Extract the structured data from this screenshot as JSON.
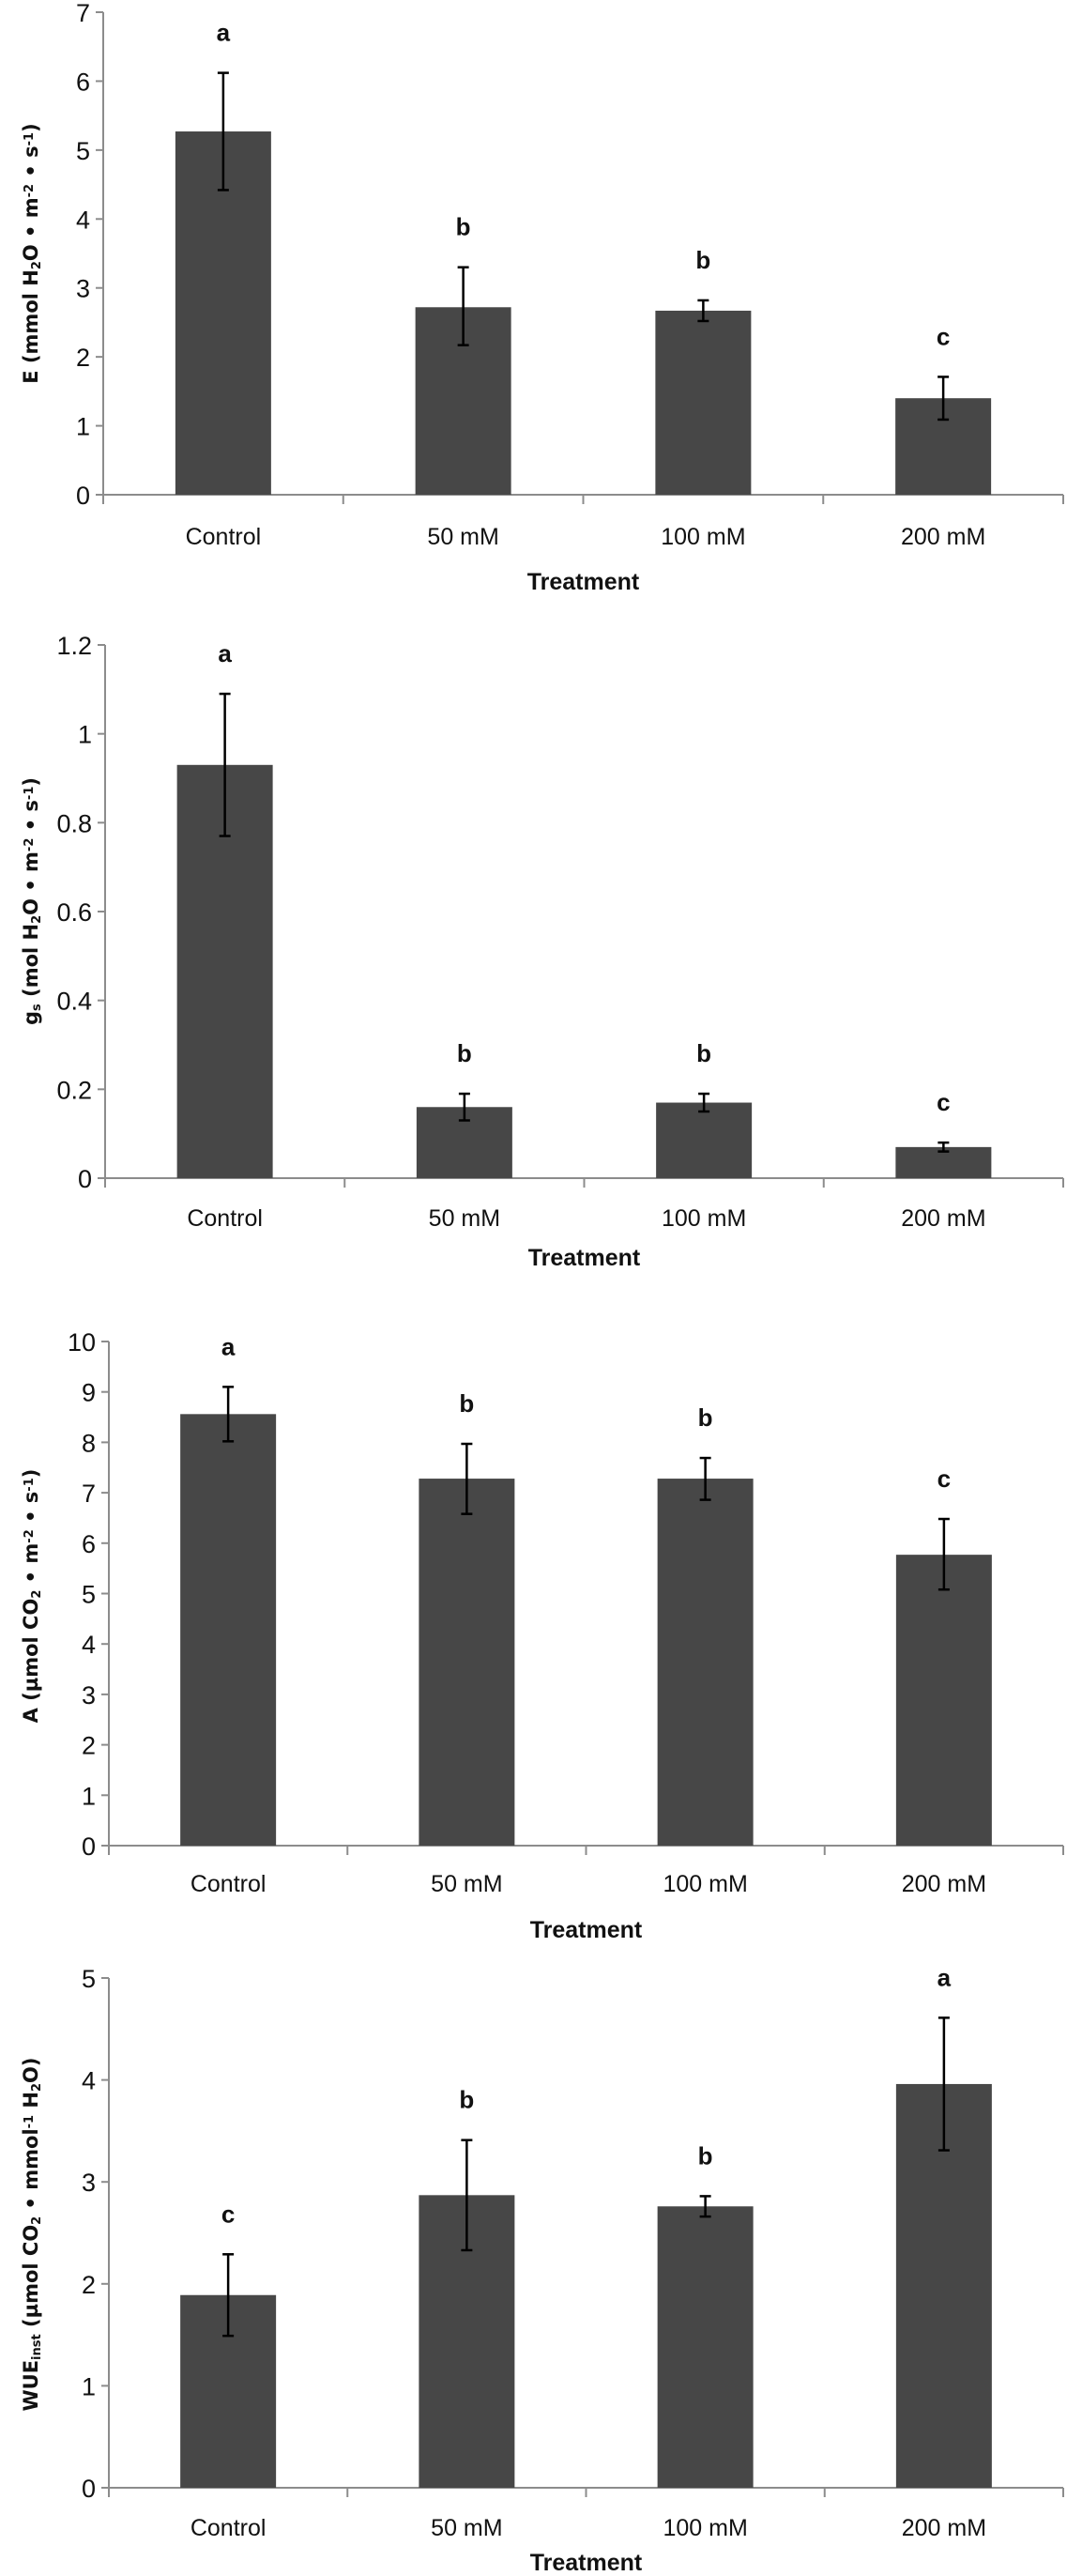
{
  "colors": {
    "bar": "#474747",
    "axis": "#8c8c8c",
    "error_bar": "#000000"
  },
  "chart_data": [
    {
      "type": "bar",
      "categories": [
        "Control",
        "50 mM",
        "100 mM",
        "200 mM"
      ],
      "values": [
        5.27,
        2.72,
        2.67,
        1.4
      ],
      "error_upper": [
        6.12,
        3.3,
        2.82,
        1.71
      ],
      "error_lower": [
        4.42,
        2.17,
        2.52,
        1.09
      ],
      "significance_letters": [
        "a",
        "b",
        "b",
        "c"
      ],
      "xlabel": "Treatment",
      "ylabel_parts": [
        {
          "t": "E (mmol H"
        },
        {
          "t": "2",
          "s": "sub"
        },
        {
          "t": "O • m"
        },
        {
          "t": "-2",
          "s": "sup"
        },
        {
          "t": " • s"
        },
        {
          "t": "-1",
          "s": "sup"
        },
        {
          "t": ")"
        }
      ],
      "ylim": [
        0,
        7
      ],
      "yticks": [
        "0",
        "1",
        "2",
        "3",
        "4",
        "5",
        "6",
        "7"
      ],
      "grid": false
    },
    {
      "type": "bar",
      "categories": [
        "Control",
        "50 mM",
        "100 mM",
        "200 mM"
      ],
      "values": [
        0.93,
        0.16,
        0.17,
        0.07
      ],
      "error_upper": [
        1.09,
        0.19,
        0.19,
        0.08
      ],
      "error_lower": [
        0.77,
        0.13,
        0.15,
        0.06
      ],
      "significance_letters": [
        "a",
        "b",
        "b",
        "c"
      ],
      "xlabel": "Treatment",
      "ylabel_parts": [
        {
          "t": "g"
        },
        {
          "t": "s",
          "s": "sub"
        },
        {
          "t": " (mol H"
        },
        {
          "t": "2",
          "s": "sub"
        },
        {
          "t": "O • m"
        },
        {
          "t": "-2",
          "s": "sup"
        },
        {
          "t": " • s"
        },
        {
          "t": "-1",
          "s": "sup"
        },
        {
          "t": ")"
        }
      ],
      "ylim": [
        0,
        1.2
      ],
      "yticks": [
        "0",
        "0.2",
        "0.4",
        "0.6",
        "0.8",
        "1",
        "1.2"
      ],
      "grid": false
    },
    {
      "type": "bar",
      "categories": [
        "Control",
        "50 mM",
        "100 mM",
        "200 mM"
      ],
      "values": [
        8.56,
        7.28,
        7.28,
        5.77
      ],
      "error_upper": [
        9.1,
        7.97,
        7.69,
        6.48
      ],
      "error_lower": [
        8.02,
        6.58,
        6.86,
        5.08
      ],
      "significance_letters": [
        "a",
        "b",
        "b",
        "c"
      ],
      "xlabel": "Treatment",
      "ylabel_parts": [
        {
          "t": "A (µmol CO"
        },
        {
          "t": "2",
          "s": "sub"
        },
        {
          "t": " • m"
        },
        {
          "t": "-2",
          "s": "sup"
        },
        {
          "t": " • s"
        },
        {
          "t": "-1",
          "s": "sup"
        },
        {
          "t": ")"
        }
      ],
      "ylim": [
        0,
        10
      ],
      "yticks": [
        "0",
        "1",
        "2",
        "3",
        "4",
        "5",
        "6",
        "7",
        "8",
        "9",
        "10"
      ],
      "grid": false
    },
    {
      "type": "bar",
      "categories": [
        "Control",
        "50 mM",
        "100 mM",
        "200 mM"
      ],
      "values": [
        1.89,
        2.87,
        2.76,
        3.96
      ],
      "error_upper": [
        2.29,
        3.41,
        2.86,
        4.61
      ],
      "error_lower": [
        1.49,
        2.33,
        2.66,
        3.31
      ],
      "significance_letters": [
        "c",
        "b",
        "b",
        "a"
      ],
      "xlabel": "Treatment",
      "ylabel_parts": [
        {
          "t": "WUE"
        },
        {
          "t": "inst",
          "s": "sub"
        },
        {
          "t": " (µmol CO"
        },
        {
          "t": "2",
          "s": "sub"
        },
        {
          "t": " • mmol"
        },
        {
          "t": "-1",
          "s": "sup"
        },
        {
          "t": " H"
        },
        {
          "t": "2",
          "s": "sub"
        },
        {
          "t": "O)"
        }
      ],
      "ylim": [
        0,
        5
      ],
      "yticks": [
        "0",
        "1",
        "2",
        "3",
        "4",
        "5"
      ],
      "grid": false
    }
  ]
}
